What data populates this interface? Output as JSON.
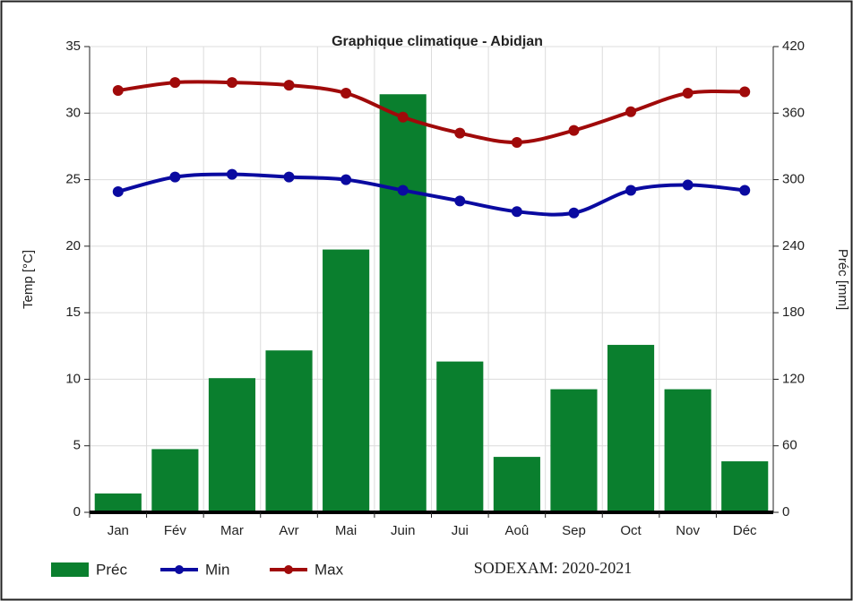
{
  "chart_data": {
    "type": "combo",
    "title": "Graphique climatique - Abidjan",
    "categories": [
      "Jan",
      "Fév",
      "Mar",
      "Avr",
      "Mai",
      "Juin",
      "Jui",
      "Aoû",
      "Sep",
      "Oct",
      "Nov",
      "Déc"
    ],
    "series": [
      {
        "name": "Préc",
        "type": "bar",
        "axis": "y2",
        "color": "#0a7f2e",
        "values": [
          17,
          57,
          121,
          146,
          237,
          377,
          136,
          50,
          111,
          151,
          111,
          46
        ]
      },
      {
        "name": "Min",
        "type": "line",
        "color": "#0a0aa0",
        "values": [
          24.1,
          25.2,
          25.4,
          25.2,
          25.0,
          24.2,
          23.4,
          22.6,
          22.5,
          24.2,
          24.6,
          24.2
        ]
      },
      {
        "name": "Max",
        "type": "line",
        "color": "#a00a0a",
        "values": [
          31.7,
          32.3,
          32.3,
          32.1,
          31.5,
          29.7,
          28.5,
          27.8,
          28.7,
          30.1,
          31.5,
          31.6
        ]
      }
    ],
    "ylabel": "Temp [°C]",
    "y2label": "Préc [mm]",
    "ylim": [
      0,
      35
    ],
    "yticks": [
      0,
      5,
      10,
      15,
      20,
      25,
      30,
      35
    ],
    "y2lim": [
      0,
      420
    ],
    "y2ticks": [
      0,
      60,
      120,
      180,
      240,
      300,
      360,
      420
    ],
    "grid": true,
    "legend": "bottom-left",
    "annotation": "SODEXAM: 2020-2021"
  }
}
